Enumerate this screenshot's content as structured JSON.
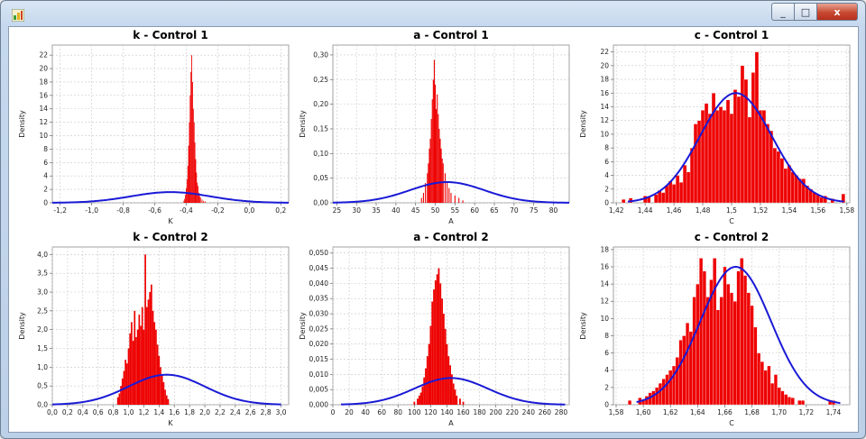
{
  "window": {
    "close_glyph": "x",
    "max_glyph": "□",
    "min_glyph": "_",
    "icon": "chart-app-icon"
  },
  "colors": {
    "bar": "#ee0000",
    "bar_edge": "#ffffff",
    "curve": "#1a1ad6",
    "grid": "#c8c8c8",
    "plot_bg": "#ffffff"
  },
  "chart_data": [
    {
      "type": "bar",
      "title": "k - Control 1",
      "xlabel": "K",
      "ylabel": "Density",
      "xlim": [
        -1.25,
        0.25
      ],
      "ylim": [
        0,
        23.5
      ],
      "xticks": [
        -1.2,
        -1.0,
        -0.8,
        -0.6,
        -0.4,
        -0.2,
        0.0,
        0.2
      ],
      "xtick_labels": [
        "-1,2",
        "-1,0",
        "-0,8",
        "-0,6",
        "-0,4",
        "-0,2",
        "0,0",
        "0,2"
      ],
      "yticks": [
        0,
        2,
        4,
        6,
        8,
        10,
        12,
        14,
        16,
        18,
        20,
        22
      ],
      "ytick_labels": [
        "0",
        "2",
        "4",
        "6",
        "8",
        "10",
        "12",
        "14",
        "16",
        "18",
        "20",
        "22"
      ],
      "bin_width": 0.005,
      "histogram": [
        [
          -0.415,
          0.3
        ],
        [
          -0.41,
          0.6
        ],
        [
          -0.405,
          1.2
        ],
        [
          -0.4,
          2.2
        ],
        [
          -0.395,
          3.5
        ],
        [
          -0.39,
          5.5
        ],
        [
          -0.385,
          8.5
        ],
        [
          -0.38,
          12.0
        ],
        [
          -0.375,
          16.0
        ],
        [
          -0.37,
          19.5
        ],
        [
          -0.365,
          22.0
        ],
        [
          -0.36,
          18.0
        ],
        [
          -0.355,
          14.0
        ],
        [
          -0.35,
          12.0
        ],
        [
          -0.345,
          9.0
        ],
        [
          -0.34,
          6.5
        ],
        [
          -0.335,
          4.5
        ],
        [
          -0.33,
          3.0
        ],
        [
          -0.325,
          2.5
        ],
        [
          -0.32,
          1.5
        ],
        [
          -0.315,
          1.0
        ],
        [
          -0.31,
          0.8
        ],
        [
          -0.3,
          0.5
        ],
        [
          -0.29,
          0.3
        ],
        [
          -0.28,
          0.2
        ]
      ],
      "curve": {
        "kind": "normal",
        "mean": -0.5,
        "sd": 0.25,
        "peak": 1.6,
        "xrange": [
          -1.25,
          0.25
        ]
      }
    },
    {
      "type": "bar",
      "title": "a - Control 1",
      "xlabel": "A",
      "ylabel": "Density",
      "xlim": [
        24,
        84
      ],
      "ylim": [
        0,
        0.32
      ],
      "xticks": [
        25,
        30,
        35,
        40,
        45,
        50,
        55,
        60,
        65,
        70,
        75,
        80
      ],
      "xtick_labels": [
        "25",
        "30",
        "35",
        "40",
        "45",
        "50",
        "55",
        "60",
        "65",
        "70",
        "75",
        "80"
      ],
      "yticks": [
        0,
        0.05,
        0.1,
        0.15,
        0.2,
        0.25,
        0.3
      ],
      "ytick_labels": [
        "0,00",
        "0,05",
        "0,10",
        "0,15",
        "0,20",
        "0,25",
        "0,30"
      ],
      "bin_width": 0.25,
      "histogram": [
        [
          46.5,
          0.01
        ],
        [
          47.0,
          0.02
        ],
        [
          47.5,
          0.04
        ],
        [
          48.0,
          0.06
        ],
        [
          48.25,
          0.08
        ],
        [
          48.5,
          0.11
        ],
        [
          48.75,
          0.13
        ],
        [
          49.0,
          0.17
        ],
        [
          49.25,
          0.21
        ],
        [
          49.5,
          0.25
        ],
        [
          49.75,
          0.29
        ],
        [
          50.0,
          0.24
        ],
        [
          50.25,
          0.19
        ],
        [
          50.5,
          0.22
        ],
        [
          50.75,
          0.18
        ],
        [
          51.0,
          0.15
        ],
        [
          51.25,
          0.13
        ],
        [
          51.5,
          0.11
        ],
        [
          51.75,
          0.09
        ],
        [
          52.0,
          0.08
        ],
        [
          52.5,
          0.06
        ],
        [
          53.0,
          0.04
        ],
        [
          53.5,
          0.03
        ],
        [
          54.0,
          0.02
        ],
        [
          55.0,
          0.015
        ],
        [
          56.0,
          0.01
        ],
        [
          57.0,
          0.005
        ]
      ],
      "curve": {
        "kind": "normal",
        "mean": 53.0,
        "sd": 9.5,
        "peak": 0.042,
        "xrange": [
          24,
          84
        ]
      }
    },
    {
      "type": "bar",
      "title": "c - Control 1",
      "xlabel": "C",
      "ylabel": "Density",
      "xlim": [
        1.418,
        1.582
      ],
      "ylim": [
        0,
        23
      ],
      "xticks": [
        1.42,
        1.44,
        1.46,
        1.48,
        1.5,
        1.52,
        1.54,
        1.56,
        1.58
      ],
      "xtick_labels": [
        "1,42",
        "1,44",
        "1,46",
        "1,48",
        "1,5",
        "1,52",
        "1,54",
        "1,56",
        "1,58"
      ],
      "yticks": [
        0,
        2,
        4,
        6,
        8,
        10,
        12,
        14,
        16,
        18,
        20,
        22
      ],
      "ytick_labels": [
        "0",
        "2",
        "4",
        "6",
        "8",
        "10",
        "12",
        "14",
        "16",
        "18",
        "20",
        "22"
      ],
      "bin_width": 0.0025,
      "histogram": [
        [
          1.425,
          0.5
        ],
        [
          1.43,
          0.7
        ],
        [
          1.44,
          1.0
        ],
        [
          1.4425,
          0.8
        ],
        [
          1.4475,
          1.2
        ],
        [
          1.45,
          1.8
        ],
        [
          1.4525,
          1.5
        ],
        [
          1.455,
          2.5
        ],
        [
          1.4575,
          3.2
        ],
        [
          1.46,
          2.7
        ],
        [
          1.4625,
          4.0
        ],
        [
          1.465,
          3.0
        ],
        [
          1.4675,
          5.5
        ],
        [
          1.47,
          4.5
        ],
        [
          1.4725,
          8.0
        ],
        [
          1.475,
          11.5
        ],
        [
          1.4775,
          12.0
        ],
        [
          1.48,
          13.5
        ],
        [
          1.4825,
          14.5
        ],
        [
          1.485,
          13.0
        ],
        [
          1.4875,
          16.0
        ],
        [
          1.49,
          13.5
        ],
        [
          1.4925,
          14.0
        ],
        [
          1.495,
          13.5
        ],
        [
          1.4975,
          15.0
        ],
        [
          1.5,
          13.0
        ],
        [
          1.5025,
          16.5
        ],
        [
          1.505,
          15.5
        ],
        [
          1.5075,
          20.0
        ],
        [
          1.51,
          18.0
        ],
        [
          1.5125,
          12.5
        ],
        [
          1.515,
          19.0
        ],
        [
          1.5175,
          22.0
        ],
        [
          1.52,
          13.5
        ],
        [
          1.5225,
          13.5
        ],
        [
          1.525,
          11.5
        ],
        [
          1.5275,
          10.5
        ],
        [
          1.53,
          8.0
        ],
        [
          1.5325,
          7.5
        ],
        [
          1.535,
          6.5
        ],
        [
          1.5375,
          5.0
        ],
        [
          1.54,
          5.5
        ],
        [
          1.5425,
          4.5
        ],
        [
          1.545,
          4.0
        ],
        [
          1.5475,
          3.5
        ],
        [
          1.55,
          3.5
        ],
        [
          1.5525,
          2.5
        ],
        [
          1.555,
          2.0
        ],
        [
          1.5575,
          1.5
        ],
        [
          1.56,
          1.2
        ],
        [
          1.5625,
          0.8
        ],
        [
          1.565,
          1.0
        ],
        [
          1.57,
          0.6
        ],
        [
          1.5775,
          1.3
        ]
      ],
      "curve": {
        "kind": "normal",
        "mean": 1.503,
        "sd": 0.025,
        "peak": 16.0,
        "xrange": [
          1.428,
          1.578
        ]
      }
    },
    {
      "type": "bar",
      "title": "k - Control 2",
      "xlabel": "K",
      "ylabel": "Density",
      "xlim": [
        0,
        3.1
      ],
      "ylim": [
        0,
        4.2
      ],
      "xticks": [
        0,
        0.2,
        0.4,
        0.6,
        0.8,
        1.0,
        1.2,
        1.4,
        1.6,
        1.8,
        2.0,
        2.2,
        2.4,
        2.6,
        2.8,
        3.0
      ],
      "xtick_labels": [
        "0,0",
        "0,2",
        "0,4",
        "0,6",
        "0,8",
        "1,0",
        "1,2",
        "1,4",
        "1,6",
        "1,8",
        "2,0",
        "2,2",
        "2,4",
        "2,6",
        "2,8",
        "3,0"
      ],
      "yticks": [
        0,
        0.5,
        1.0,
        1.5,
        2.0,
        2.5,
        3.0,
        3.5,
        4.0
      ],
      "ytick_labels": [
        "0,0",
        "0,5",
        "1,0",
        "1,5",
        "2,0",
        "2,5",
        "3,0",
        "3,5",
        "4,0"
      ],
      "bin_width": 0.02,
      "histogram": [
        [
          0.86,
          0.2
        ],
        [
          0.88,
          0.3
        ],
        [
          0.9,
          0.5
        ],
        [
          0.92,
          0.7
        ],
        [
          0.94,
          0.9
        ],
        [
          0.96,
          1.2
        ],
        [
          0.98,
          1.1
        ],
        [
          1.0,
          1.5
        ],
        [
          1.02,
          1.9
        ],
        [
          1.04,
          2.2
        ],
        [
          1.06,
          1.7
        ],
        [
          1.08,
          2.5
        ],
        [
          1.1,
          1.8
        ],
        [
          1.12,
          2.0
        ],
        [
          1.14,
          2.4
        ],
        [
          1.16,
          2.1
        ],
        [
          1.18,
          2.6
        ],
        [
          1.2,
          2.0
        ],
        [
          1.22,
          4.0
        ],
        [
          1.24,
          2.6
        ],
        [
          1.26,
          2.8
        ],
        [
          1.28,
          3.0
        ],
        [
          1.3,
          3.2
        ],
        [
          1.32,
          2.5
        ],
        [
          1.34,
          2.2
        ],
        [
          1.36,
          2.0
        ],
        [
          1.38,
          1.6
        ],
        [
          1.4,
          1.3
        ],
        [
          1.42,
          1.0
        ],
        [
          1.44,
          0.8
        ],
        [
          1.46,
          0.6
        ],
        [
          1.48,
          0.4
        ],
        [
          1.5,
          0.25
        ],
        [
          1.52,
          0.15
        ]
      ],
      "curve": {
        "kind": "normal",
        "mean": 1.5,
        "sd": 0.5,
        "peak": 0.8,
        "xrange": [
          0,
          3.0
        ]
      }
    },
    {
      "type": "bar",
      "title": "a - Control 2",
      "xlabel": "A",
      "ylabel": "Density",
      "xlim": [
        0,
        290
      ],
      "ylim": [
        0,
        0.052
      ],
      "xticks": [
        0,
        20,
        40,
        60,
        80,
        100,
        120,
        140,
        160,
        180,
        200,
        220,
        240,
        260,
        280
      ],
      "xtick_labels": [
        "0",
        "20",
        "40",
        "60",
        "80",
        "100",
        "120",
        "140",
        "160",
        "180",
        "200",
        "220",
        "240",
        "260",
        "280"
      ],
      "yticks": [
        0,
        0.005,
        0.01,
        0.015,
        0.02,
        0.025,
        0.03,
        0.035,
        0.04,
        0.045,
        0.05
      ],
      "ytick_labels": [
        "0,000",
        "0,005",
        "0,010",
        "0,015",
        "0,020",
        "0,025",
        "0,030",
        "0,035",
        "0,040",
        "0,045",
        "0,050"
      ],
      "bin_width": 2,
      "histogram": [
        [
          100,
          0.001
        ],
        [
          104,
          0.002
        ],
        [
          106,
          0.003
        ],
        [
          108,
          0.004
        ],
        [
          110,
          0.006
        ],
        [
          112,
          0.009
        ],
        [
          114,
          0.012
        ],
        [
          116,
          0.016
        ],
        [
          118,
          0.02
        ],
        [
          120,
          0.026
        ],
        [
          122,
          0.034
        ],
        [
          124,
          0.038
        ],
        [
          126,
          0.041
        ],
        [
          128,
          0.043
        ],
        [
          130,
          0.045
        ],
        [
          132,
          0.04
        ],
        [
          134,
          0.035
        ],
        [
          136,
          0.03
        ],
        [
          138,
          0.025
        ],
        [
          140,
          0.02
        ],
        [
          142,
          0.016
        ],
        [
          144,
          0.013
        ],
        [
          146,
          0.01
        ],
        [
          148,
          0.007
        ],
        [
          150,
          0.005
        ],
        [
          152,
          0.003
        ],
        [
          156,
          0.002
        ],
        [
          160,
          0.001
        ]
      ],
      "curve": {
        "kind": "normal",
        "mean": 145,
        "sd": 45,
        "peak": 0.0088,
        "xrange": [
          10,
          285
        ]
      }
    },
    {
      "type": "bar",
      "title": "c - Control 2",
      "xlabel": "C",
      "ylabel": "Density",
      "xlim": [
        1.578,
        1.752
      ],
      "ylim": [
        0,
        18.3
      ],
      "xticks": [
        1.58,
        1.6,
        1.62,
        1.64,
        1.66,
        1.68,
        1.7,
        1.72,
        1.74
      ],
      "xtick_labels": [
        "1,58",
        "1,60",
        "1,62",
        "1,64",
        "1,66",
        "1,68",
        "1,70",
        "1,72",
        "1,74"
      ],
      "yticks": [
        0,
        2,
        4,
        6,
        8,
        10,
        12,
        14,
        16,
        18
      ],
      "ytick_labels": [
        "0",
        "2",
        "4",
        "6",
        "8",
        "10",
        "12",
        "14",
        "16",
        "18"
      ],
      "bin_width": 0.0025,
      "histogram": [
        [
          1.59,
          0.5
        ],
        [
          1.5975,
          0.8
        ],
        [
          1.6,
          0.6
        ],
        [
          1.6025,
          1.0
        ],
        [
          1.605,
          1.4
        ],
        [
          1.6075,
          1.6
        ],
        [
          1.61,
          2.0
        ],
        [
          1.6125,
          2.5
        ],
        [
          1.615,
          3.0
        ],
        [
          1.6175,
          3.5
        ],
        [
          1.62,
          4.0
        ],
        [
          1.6225,
          4.5
        ],
        [
          1.625,
          5.5
        ],
        [
          1.6275,
          7.5
        ],
        [
          1.63,
          8.0
        ],
        [
          1.6325,
          9.5
        ],
        [
          1.635,
          8.5
        ],
        [
          1.6375,
          12.5
        ],
        [
          1.64,
          14.0
        ],
        [
          1.6425,
          17.0
        ],
        [
          1.645,
          15.5
        ],
        [
          1.6475,
          12.5
        ],
        [
          1.65,
          14.5
        ],
        [
          1.6525,
          17.0
        ],
        [
          1.655,
          11.0
        ],
        [
          1.6575,
          12.5
        ],
        [
          1.66,
          16.0
        ],
        [
          1.6625,
          14.0
        ],
        [
          1.665,
          13.0
        ],
        [
          1.6675,
          12.0
        ],
        [
          1.67,
          15.5
        ],
        [
          1.6725,
          17.0
        ],
        [
          1.675,
          15.0
        ],
        [
          1.6775,
          13.0
        ],
        [
          1.68,
          11.5
        ],
        [
          1.6825,
          9.0
        ],
        [
          1.685,
          6.0
        ],
        [
          1.6875,
          5.0
        ],
        [
          1.69,
          4.0
        ],
        [
          1.6925,
          4.5
        ],
        [
          1.695,
          2.5
        ],
        [
          1.6975,
          3.5
        ],
        [
          1.7,
          2.0
        ],
        [
          1.7025,
          1.6
        ],
        [
          1.705,
          1.2
        ],
        [
          1.7075,
          0.9
        ],
        [
          1.71,
          0.8
        ],
        [
          1.715,
          0.5
        ],
        [
          1.7175,
          0.5
        ],
        [
          1.7375,
          0.5
        ],
        [
          1.74,
          0.5
        ]
      ],
      "curve": {
        "kind": "normal",
        "mean": 1.668,
        "sd": 0.026,
        "peak": 16.0,
        "xrange": [
          1.595,
          1.745
        ]
      }
    }
  ]
}
